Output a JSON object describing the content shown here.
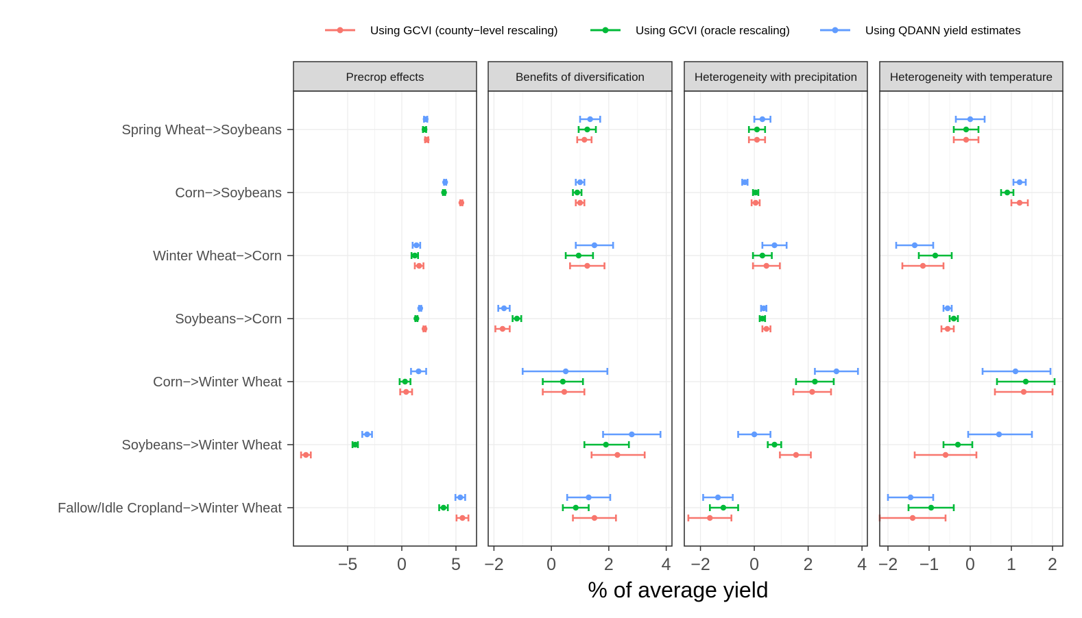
{
  "colors": {
    "county": "#f8766d",
    "oracle": "#00ba38",
    "qdann": "#619cff",
    "strip_fill": "#d9d9d9",
    "grid": "#ebebeb",
    "axis_text": "#4d4d4d"
  },
  "legend": [
    {
      "key": "county",
      "label": "Using GCVI (county−level rescaling)"
    },
    {
      "key": "oracle",
      "label": "Using GCVI (oracle rescaling)"
    },
    {
      "key": "qdann",
      "label": "Using QDANN yield estimates"
    }
  ],
  "xlabel": "% of average yield",
  "chart_data": {
    "type": "dot-errorbar",
    "categories": [
      "Spring Wheat−>Soybeans",
      "Corn−>Soybeans",
      "Winter Wheat−>Corn",
      "Soybeans−>Corn",
      "Corn−>Winter Wheat",
      "Soybeans−>Winter Wheat",
      "Fallow/Idle Cropland−>Winter Wheat"
    ],
    "series_order": [
      "qdann",
      "oracle",
      "county"
    ],
    "panels": [
      {
        "title": "Precrop effects",
        "xlim": [
          -10,
          6.9
        ],
        "ticks": [
          -5,
          0,
          5
        ],
        "tick_labels": [
          "−5",
          "0",
          "5"
        ],
        "data": {
          "qdann": [
            [
              2.2,
              2.05,
              2.35
            ],
            [
              4.0,
              3.9,
              4.1
            ],
            [
              1.35,
              1.0,
              1.7
            ],
            [
              1.7,
              1.6,
              1.8
            ],
            [
              1.55,
              0.85,
              2.25
            ],
            [
              -3.2,
              -3.65,
              -2.75
            ],
            [
              5.4,
              4.95,
              5.85
            ]
          ],
          "oracle": [
            [
              2.1,
              1.95,
              2.25
            ],
            [
              3.9,
              3.8,
              4.0
            ],
            [
              1.2,
              0.9,
              1.5
            ],
            [
              1.35,
              1.25,
              1.45
            ],
            [
              0.3,
              -0.2,
              0.8
            ],
            [
              -4.3,
              -4.55,
              -4.05
            ],
            [
              3.85,
              3.45,
              4.25
            ]
          ],
          "county": [
            [
              2.3,
              2.15,
              2.45
            ],
            [
              5.5,
              5.4,
              5.6
            ],
            [
              1.6,
              1.2,
              2.0
            ],
            [
              2.1,
              2.0,
              2.2
            ],
            [
              0.4,
              -0.15,
              0.95
            ],
            [
              -8.85,
              -9.3,
              -8.4
            ],
            [
              5.6,
              5.05,
              6.15
            ]
          ]
        }
      },
      {
        "title": "Benefits of diversification",
        "xlim": [
          -2.2,
          4.2
        ],
        "ticks": [
          -2,
          0,
          2,
          4
        ],
        "tick_labels": [
          "−2",
          "0",
          "2",
          "4"
        ],
        "data": {
          "qdann": [
            [
              1.35,
              1.0,
              1.7
            ],
            [
              1.0,
              0.85,
              1.15
            ],
            [
              1.5,
              0.85,
              2.15
            ],
            [
              -1.65,
              -1.85,
              -1.45
            ],
            [
              0.5,
              -1.0,
              1.95
            ],
            [
              2.8,
              1.8,
              3.8
            ],
            [
              1.3,
              0.55,
              2.05
            ]
          ],
          "oracle": [
            [
              1.25,
              0.95,
              1.55
            ],
            [
              0.9,
              0.75,
              1.05
            ],
            [
              0.95,
              0.5,
              1.45
            ],
            [
              -1.2,
              -1.35,
              -1.05
            ],
            [
              0.4,
              -0.3,
              1.1
            ],
            [
              1.9,
              1.15,
              2.7
            ],
            [
              0.85,
              0.4,
              1.3
            ]
          ],
          "county": [
            [
              1.15,
              0.9,
              1.4
            ],
            [
              1.0,
              0.85,
              1.15
            ],
            [
              1.25,
              0.65,
              1.85
            ],
            [
              -1.7,
              -1.95,
              -1.45
            ],
            [
              0.45,
              -0.3,
              1.15
            ],
            [
              2.3,
              1.4,
              3.25
            ],
            [
              1.5,
              0.75,
              2.25
            ]
          ]
        }
      },
      {
        "title": "Heterogeneity with precipitation",
        "xlim": [
          -2.6,
          4.2
        ],
        "ticks": [
          -2,
          0,
          2,
          4
        ],
        "tick_labels": [
          "−2",
          "0",
          "2",
          "4"
        ],
        "data": {
          "qdann": [
            [
              0.3,
              0.0,
              0.6
            ],
            [
              -0.35,
              -0.45,
              -0.25
            ],
            [
              0.75,
              0.3,
              1.2
            ],
            [
              0.35,
              0.25,
              0.45
            ],
            [
              3.05,
              2.25,
              3.85
            ],
            [
              0.0,
              -0.6,
              0.6
            ],
            [
              -1.35,
              -1.9,
              -0.8
            ]
          ],
          "oracle": [
            [
              0.1,
              -0.2,
              0.4
            ],
            [
              0.05,
              -0.05,
              0.15
            ],
            [
              0.3,
              -0.05,
              0.65
            ],
            [
              0.3,
              0.2,
              0.4
            ],
            [
              2.25,
              1.55,
              2.95
            ],
            [
              0.75,
              0.5,
              1.0
            ],
            [
              -1.15,
              -1.65,
              -0.6
            ]
          ],
          "county": [
            [
              0.1,
              -0.2,
              0.4
            ],
            [
              0.05,
              -0.1,
              0.2
            ],
            [
              0.45,
              -0.05,
              0.95
            ],
            [
              0.45,
              0.3,
              0.6
            ],
            [
              2.15,
              1.45,
              2.85
            ],
            [
              1.55,
              0.95,
              2.1
            ],
            [
              -1.65,
              -2.45,
              -0.85
            ]
          ]
        }
      },
      {
        "title": "Heterogeneity with temperature",
        "xlim": [
          -2.2,
          2.25
        ],
        "ticks": [
          -2,
          -1,
          0,
          1,
          2
        ],
        "tick_labels": [
          "−2",
          "−1",
          "0",
          "1",
          "2"
        ],
        "data": {
          "qdann": [
            [
              0.0,
              -0.35,
              0.35
            ],
            [
              1.2,
              1.05,
              1.35
            ],
            [
              -1.35,
              -1.8,
              -0.9
            ],
            [
              -0.55,
              -0.65,
              -0.45
            ],
            [
              1.1,
              0.3,
              1.95
            ],
            [
              0.7,
              -0.05,
              1.5
            ],
            [
              -1.45,
              -2.0,
              -0.9
            ]
          ],
          "oracle": [
            [
              -0.1,
              -0.4,
              0.2
            ],
            [
              0.9,
              0.75,
              1.05
            ],
            [
              -0.85,
              -1.25,
              -0.45
            ],
            [
              -0.4,
              -0.5,
              -0.3
            ],
            [
              1.35,
              0.65,
              2.05
            ],
            [
              -0.3,
              -0.65,
              0.05
            ],
            [
              -0.95,
              -1.5,
              -0.4
            ]
          ],
          "county": [
            [
              -0.1,
              -0.4,
              0.2
            ],
            [
              1.2,
              1.0,
              1.4
            ],
            [
              -1.15,
              -1.65,
              -0.65
            ],
            [
              -0.55,
              -0.7,
              -0.4
            ],
            [
              1.3,
              0.6,
              2.0
            ],
            [
              -0.6,
              -1.35,
              0.15
            ],
            [
              -1.4,
              -2.2,
              -0.6
            ]
          ]
        }
      }
    ]
  }
}
